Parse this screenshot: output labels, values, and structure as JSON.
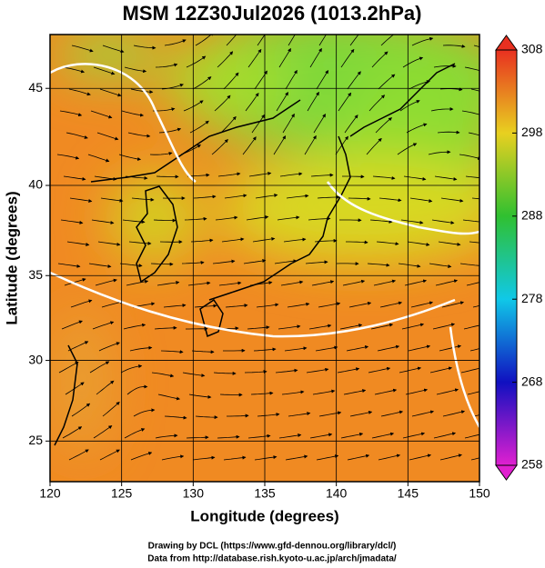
{
  "title": "MSM 12Z30Jul2026 (1013.2hPa)",
  "map": {
    "projection": "mercator",
    "xlabel": "Longitude (degrees)",
    "ylabel": "Latitude  (degrees)",
    "xlim": [
      120,
      150
    ],
    "ylim": [
      22.4,
      47.6
    ],
    "xticks": [
      120,
      125,
      130,
      135,
      140,
      145,
      150
    ],
    "yticks": [
      25,
      30,
      35,
      40,
      45
    ]
  },
  "colorbar": {
    "lim": [
      258,
      308
    ],
    "ticks": [
      258,
      268,
      278,
      288,
      298,
      308
    ],
    "colors": [
      "#e020d0",
      "#1010c0",
      "#10c8e8",
      "#30c030",
      "#e8d020",
      "#e83020"
    ]
  },
  "credits": [
    "Drawing by DCL (https://www.gfd-dennou.org/library/dcl/)",
    "Data from http://database.rish.kyoto-u.ac.jp/arch/jmadata/"
  ]
}
